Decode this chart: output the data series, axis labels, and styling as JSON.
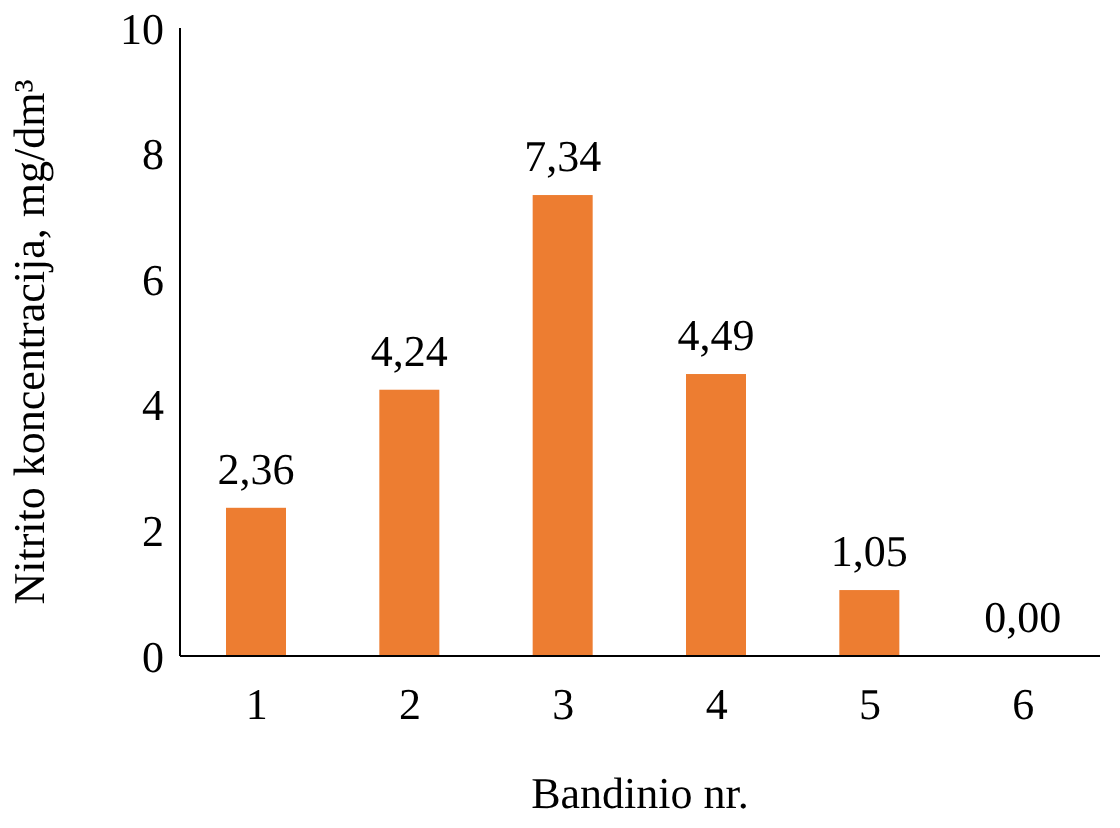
{
  "chart_data": {
    "type": "bar",
    "xlabel": "Bandinio nr.",
    "ylabel": "Nitrito koncentracija, mg/dm³",
    "categories": [
      "1",
      "2",
      "3",
      "4",
      "5",
      "6"
    ],
    "values": [
      2.36,
      4.24,
      7.34,
      4.49,
      1.05,
      0
    ],
    "value_labels": [
      "2,36",
      "4,24",
      "7,34",
      "4,49",
      "1,05",
      "0,00"
    ],
    "color": "#ed7d31",
    "ylim": [
      0,
      10
    ],
    "yticks": [
      0,
      2,
      4,
      6,
      8,
      10
    ],
    "grid": false
  }
}
